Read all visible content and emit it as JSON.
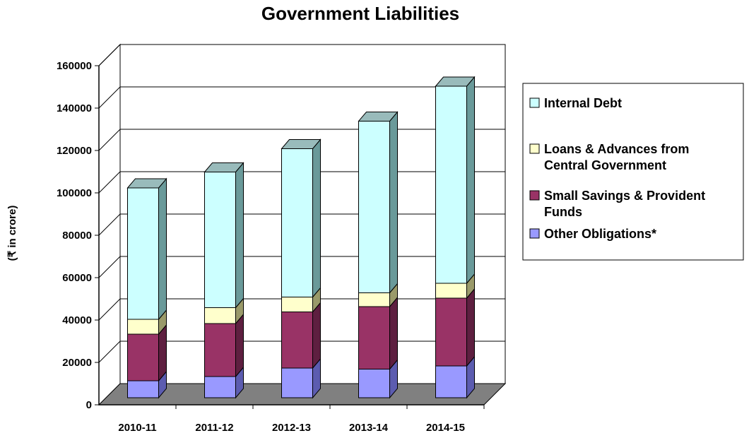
{
  "chart_data": {
    "type": "bar",
    "stacked": true,
    "three_d": true,
    "title": "Government Liabilities",
    "xlabel": "",
    "ylabel": "(₹ in crore)",
    "ylim": [
      0,
      160000
    ],
    "yticks": [
      "0",
      "20000",
      "40000",
      "60000",
      "80000",
      "100000",
      "120000",
      "140000",
      "160000"
    ],
    "grid": true,
    "legend_position": "right",
    "categories": [
      "2010-11",
      "2011-12",
      "2012-13",
      "2013-14",
      "2014-15"
    ],
    "series": [
      {
        "name": "Other Obligations*",
        "values": [
          8000,
          10000,
          14000,
          13500,
          15000
        ],
        "color": "#9999ff",
        "side_color": "#5c5cb0"
      },
      {
        "name": "Small Savings & Provident Funds",
        "values": [
          22000,
          25000,
          26500,
          29500,
          32000
        ],
        "color": "#993366",
        "side_color": "#5e1f40"
      },
      {
        "name": "Loans & Advances from Central Government",
        "values": [
          7000,
          7500,
          7000,
          6500,
          7000
        ],
        "color": "#ffffcc",
        "side_color": "#9a9a6a"
      },
      {
        "name": "Internal Debt",
        "values": [
          62000,
          64000,
          70000,
          81000,
          93000
        ],
        "color": "#ccffff",
        "side_color": "#6a9a9a"
      }
    ],
    "legend_order": [
      "Internal Debt",
      "Loans & Advances from Central Government",
      "Small Savings & Provident Funds",
      "Other Obligations*"
    ],
    "legend_lines": [
      [
        "Internal Debt"
      ],
      [
        "Loans & Advances from",
        "Central Government"
      ],
      [
        "Small Savings & Provident",
        "Funds"
      ],
      [
        "Other Obligations*"
      ]
    ],
    "floor_color": "#808080",
    "top_face_color": "#99bbbb"
  }
}
